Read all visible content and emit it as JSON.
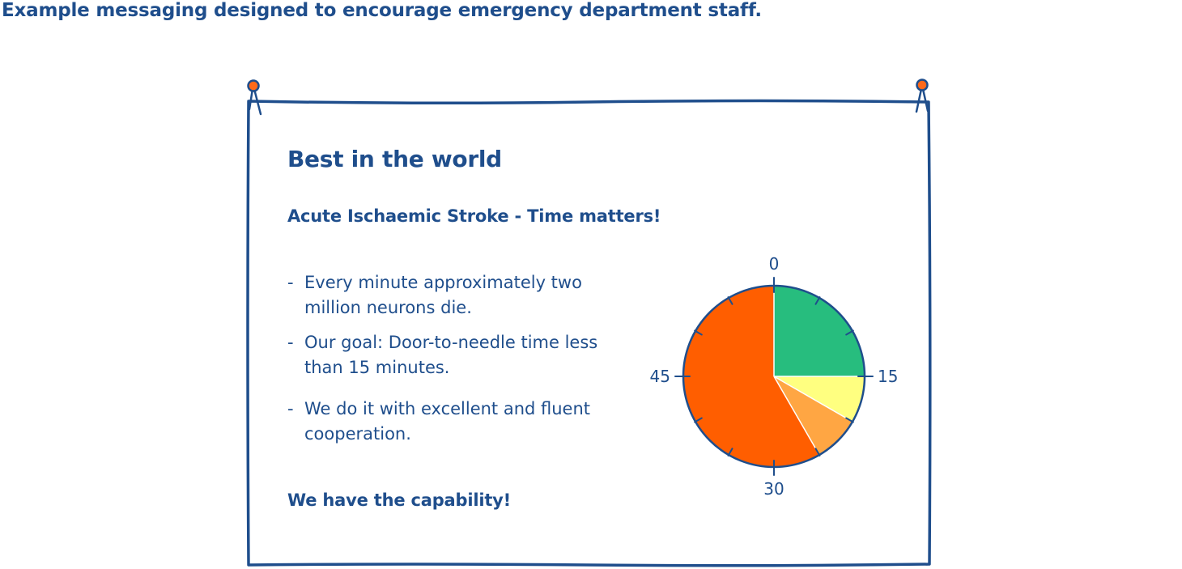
{
  "title": "Example messaging designed to encourage emergency department staff.",
  "poster": {
    "heading": "Best in the world",
    "subheading": "Acute Ischaemic Stroke - Time matters!",
    "bullet_marker": "-",
    "bullets": [
      "Every minute approximately two million neurons die.",
      "Our goal: Door-to-needle time less than 15 minutes.",
      "We do it with excellent and fluent cooperation."
    ],
    "tagline": "We have the capability!"
  },
  "colors": {
    "ink": "#1f4e8c",
    "pin": "#ff6a1a",
    "frame_bg": "#ffffff"
  },
  "chart_data": {
    "type": "pie",
    "title": "",
    "unit": "minutes",
    "dial_total": 60,
    "tick_labels": [
      "0",
      "15",
      "30",
      "45"
    ],
    "tick_label_values": [
      0,
      15,
      30,
      45
    ],
    "minor_tick_step": 5,
    "slices": [
      {
        "start": 0,
        "end": 15,
        "color": "#27bd7e"
      },
      {
        "start": 15,
        "end": 20,
        "color": "#ffff80"
      },
      {
        "start": 20,
        "end": 25,
        "color": "#ffa643"
      },
      {
        "start": 25,
        "end": 60,
        "color": "#ff5e00"
      }
    ]
  }
}
